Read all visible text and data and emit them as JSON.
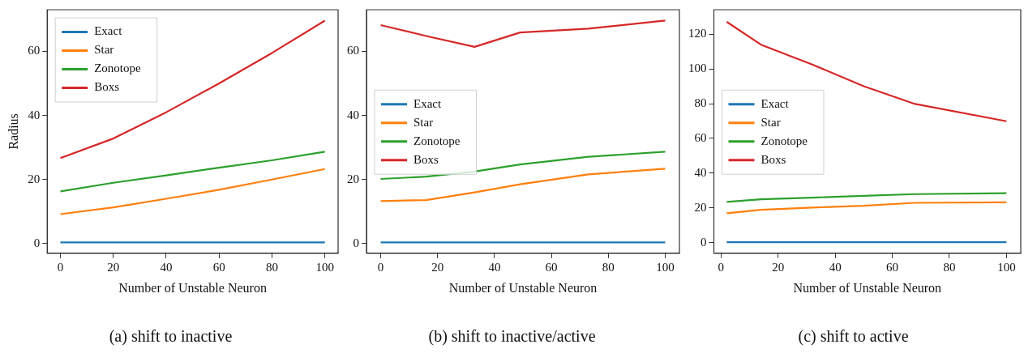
{
  "chart_data": [
    {
      "type": "line",
      "xlabel": "Number of Unstable Neuron",
      "ylabel": "Radius",
      "xlim": [
        -5,
        105
      ],
      "xticks": [
        0,
        20,
        40,
        60,
        80,
        100
      ],
      "ylim": [
        -3,
        73
      ],
      "yticks": [
        0,
        20,
        40,
        60
      ],
      "grid": false,
      "legend": "top left",
      "marker": "none",
      "line_style": "solid",
      "annotations": [
        "(a) shift to inactive"
      ],
      "series": [
        {
          "name": "Exact",
          "color": "#1f77b4",
          "x": [
            0,
            20,
            40,
            60,
            80,
            100
          ],
          "values": [
            0.4,
            0.4,
            0.4,
            0.4,
            0.4,
            0.4
          ]
        },
        {
          "name": "Star",
          "color": "#ff7f0e",
          "x": [
            0,
            20,
            40,
            60,
            80,
            100
          ],
          "values": [
            9.2,
            11.3,
            14,
            16.8,
            20,
            23.3
          ]
        },
        {
          "name": "Zonotope",
          "color": "#2ca02c",
          "x": [
            0,
            20,
            40,
            60,
            80,
            100
          ],
          "values": [
            16.3,
            19,
            21.3,
            23.7,
            26,
            28.7
          ]
        },
        {
          "name": "Boxs",
          "color": "#d62728",
          "x": [
            0,
            20,
            40,
            60,
            80,
            100
          ],
          "values": [
            26.7,
            32.8,
            41,
            50,
            59.5,
            69.6
          ]
        }
      ]
    },
    {
      "type": "line",
      "xlabel": "Number of Unstable Neuron",
      "xlim": [
        -5,
        105
      ],
      "xticks": [
        0,
        20,
        40,
        60,
        80,
        100
      ],
      "ylim": [
        -3,
        73
      ],
      "yticks": [
        0,
        20,
        40,
        60
      ],
      "grid": false,
      "legend": "left",
      "marker": "none",
      "line_style": "solid",
      "annotations": [
        "(b) shift to inactive/active"
      ],
      "series": [
        {
          "name": "Exact",
          "color": "#1f77b4",
          "x": [
            0,
            16,
            33,
            49,
            73,
            100
          ],
          "values": [
            0.4,
            0.4,
            0.4,
            0.4,
            0.4,
            0.4
          ]
        },
        {
          "name": "Star",
          "color": "#ff7f0e",
          "x": [
            0,
            16,
            33,
            49,
            73,
            100
          ],
          "values": [
            13.3,
            13.6,
            16,
            18.5,
            21.6,
            23.4
          ]
        },
        {
          "name": "Zonotope",
          "color": "#2ca02c",
          "x": [
            0,
            16,
            33,
            49,
            73,
            100
          ],
          "values": [
            20.2,
            20.9,
            22.5,
            24.7,
            27.1,
            28.7
          ]
        },
        {
          "name": "Boxs",
          "color": "#d62728",
          "x": [
            0,
            16,
            33,
            49,
            73,
            100
          ],
          "values": [
            68.2,
            64.8,
            61.4,
            65.9,
            67.1,
            69.6
          ]
        }
      ]
    },
    {
      "type": "line",
      "xlabel": "Number of Unstable Neuron",
      "xlim": [
        -2.5,
        105
      ],
      "xticks": [
        0,
        20,
        40,
        60,
        80,
        100
      ],
      "ylim": [
        -6,
        134
      ],
      "yticks": [
        0,
        20,
        40,
        60,
        80,
        100,
        120
      ],
      "grid": false,
      "legend": "left",
      "marker": "none",
      "line_style": "solid",
      "annotations": [
        "(c) shift to active"
      ],
      "series": [
        {
          "name": "Exact",
          "color": "#1f77b4",
          "x": [
            2,
            14,
            32,
            50,
            68,
            100
          ],
          "values": [
            0.4,
            0.4,
            0.4,
            0.4,
            0.4,
            0.4
          ]
        },
        {
          "name": "Star",
          "color": "#ff7f0e",
          "x": [
            2,
            14,
            32,
            50,
            68,
            100
          ],
          "values": [
            17,
            19,
            20.3,
            21.3,
            23,
            23.3
          ]
        },
        {
          "name": "Zonotope",
          "color": "#2ca02c",
          "x": [
            2,
            14,
            32,
            50,
            68,
            100
          ],
          "values": [
            23.5,
            25,
            26,
            27,
            28,
            28.5
          ]
        },
        {
          "name": "Boxs",
          "color": "#d62728",
          "x": [
            2,
            14,
            32,
            50,
            68,
            100
          ],
          "values": [
            127,
            113.9,
            102.5,
            90,
            79.8,
            69.9
          ]
        }
      ]
    }
  ]
}
